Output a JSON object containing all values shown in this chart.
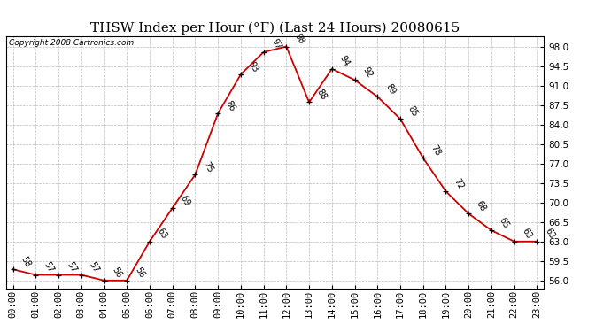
{
  "title": "THSW Index per Hour (°F) (Last 24 Hours) 20080615",
  "copyright": "Copyright 2008 Cartronics.com",
  "hours": [
    0,
    1,
    2,
    3,
    4,
    5,
    6,
    7,
    8,
    9,
    10,
    11,
    12,
    13,
    14,
    15,
    16,
    17,
    18,
    19,
    20,
    21,
    22,
    23
  ],
  "values": [
    58,
    57,
    57,
    57,
    56,
    56,
    63,
    69,
    75,
    86,
    93,
    97,
    98,
    88,
    94,
    92,
    89,
    85,
    78,
    72,
    68,
    65,
    63,
    63
  ],
  "hour_labels": [
    "00:00",
    "01:00",
    "02:00",
    "03:00",
    "04:00",
    "05:00",
    "06:00",
    "07:00",
    "08:00",
    "09:00",
    "10:00",
    "11:00",
    "12:00",
    "13:00",
    "14:00",
    "15:00",
    "16:00",
    "17:00",
    "18:00",
    "19:00",
    "20:00",
    "21:00",
    "22:00",
    "23:00"
  ],
  "y_ticks": [
    56.0,
    59.5,
    63.0,
    66.5,
    70.0,
    73.5,
    77.0,
    80.5,
    84.0,
    87.5,
    91.0,
    94.5,
    98.0
  ],
  "ylim": [
    54.5,
    99.8
  ],
  "xlim": [
    -0.3,
    23.3
  ],
  "line_color": "#cc0000",
  "marker_color": "#000000",
  "bg_color": "#ffffff",
  "grid_color": "#bbbbbb",
  "title_fontsize": 11,
  "copyright_fontsize": 6.5,
  "label_fontsize": 7,
  "tick_fontsize": 7.5
}
